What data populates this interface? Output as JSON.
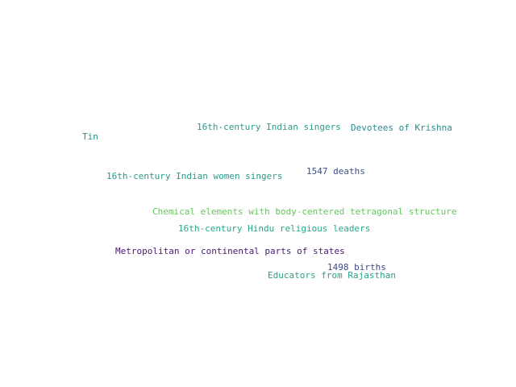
{
  "words": [
    {
      "text": "16th-century Indian singers",
      "color": "#2a9a8c"
    },
    {
      "text": "Devotees of Krishna",
      "color": "#2b8a8f"
    },
    {
      "text": "Tin",
      "color": "#2a8e8f"
    },
    {
      "text": "16th-century Indian women singers",
      "color": "#2a9a8a"
    },
    {
      "text": "1547 deaths",
      "color": "#3b4f86"
    },
    {
      "text": "Chemical elements with body-centered tetragonal structure",
      "color": "#62c75a"
    },
    {
      "text": "16th-century Hindu religious leaders",
      "color": "#22a884"
    },
    {
      "text": "Metropolitan or continental parts of states",
      "color": "#4a176e"
    },
    {
      "text": "1498 births",
      "color": "#3e4a89"
    },
    {
      "text": "Educators from Rajasthan",
      "color": "#2a9e88"
    }
  ]
}
